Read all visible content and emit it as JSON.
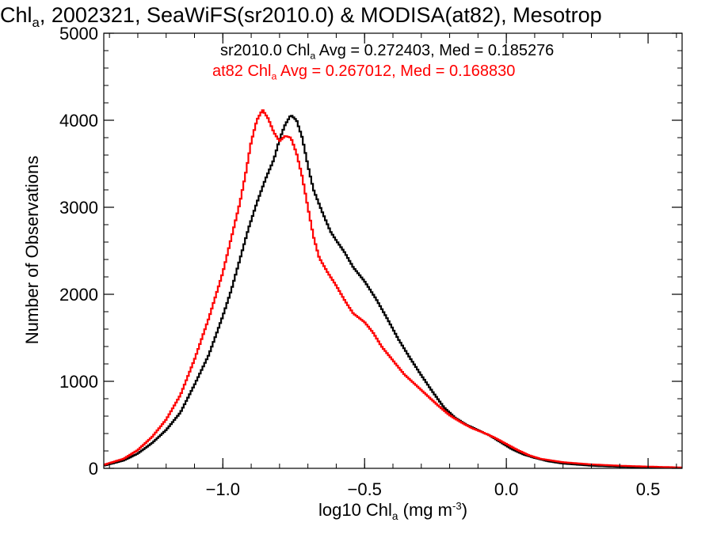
{
  "chart_data": {
    "type": "histogram",
    "title": {
      "pre": "Chl",
      "sub": "a",
      "post": ", 2002321, SeaWiFS(sr2010.0) & MODISA(at82), Mesotrop"
    },
    "xlabel": {
      "pre": "log10 Chl",
      "sub": "a",
      "mid": " (mg m",
      "sup": "-3",
      "post": ")"
    },
    "ylabel": "Number of Observations",
    "xlim": [
      -1.42,
      0.62
    ],
    "ylim": [
      0,
      5000
    ],
    "x_ticks": [
      -1.0,
      -0.5,
      0.0,
      0.5
    ],
    "x_tick_labels": [
      "−1.0",
      "−0.5",
      "0.0",
      "0.5"
    ],
    "y_ticks": [
      0,
      1000,
      2000,
      3000,
      4000,
      5000
    ],
    "y_tick_labels": [
      "0",
      "1000",
      "2000",
      "3000",
      "4000",
      "5000"
    ],
    "grid": false,
    "legend_position": "top-right",
    "series": [
      {
        "name": "sr2010.0",
        "color": "#000000",
        "stat_text": {
          "pre": "sr2010.0 Chl",
          "sub": "a",
          "post": " Avg = 0.272403, Med = 0.185276"
        },
        "points": [
          [
            -1.42,
            30
          ],
          [
            -1.35,
            90
          ],
          [
            -1.3,
            170
          ],
          [
            -1.25,
            290
          ],
          [
            -1.2,
            440
          ],
          [
            -1.15,
            640
          ],
          [
            -1.1,
            960
          ],
          [
            -1.05,
            1300
          ],
          [
            -1.0,
            1750
          ],
          [
            -0.97,
            2050
          ],
          [
            -0.94,
            2400
          ],
          [
            -0.91,
            2750
          ],
          [
            -0.88,
            3050
          ],
          [
            -0.85,
            3320
          ],
          [
            -0.82,
            3550
          ],
          [
            -0.8,
            3780
          ],
          [
            -0.78,
            3950
          ],
          [
            -0.76,
            4060
          ],
          [
            -0.74,
            4000
          ],
          [
            -0.72,
            3800
          ],
          [
            -0.7,
            3480
          ],
          [
            -0.68,
            3200
          ],
          [
            -0.65,
            2950
          ],
          [
            -0.62,
            2720
          ],
          [
            -0.6,
            2620
          ],
          [
            -0.57,
            2480
          ],
          [
            -0.54,
            2310
          ],
          [
            -0.5,
            2150
          ],
          [
            -0.46,
            1950
          ],
          [
            -0.42,
            1720
          ],
          [
            -0.38,
            1480
          ],
          [
            -0.34,
            1270
          ],
          [
            -0.3,
            1070
          ],
          [
            -0.26,
            880
          ],
          [
            -0.22,
            700
          ],
          [
            -0.18,
            580
          ],
          [
            -0.14,
            500
          ],
          [
            -0.1,
            440
          ],
          [
            -0.06,
            380
          ],
          [
            -0.02,
            300
          ],
          [
            0.02,
            220
          ],
          [
            0.06,
            160
          ],
          [
            0.1,
            120
          ],
          [
            0.15,
            80
          ],
          [
            0.2,
            55
          ],
          [
            0.3,
            30
          ],
          [
            0.4,
            18
          ],
          [
            0.5,
            10
          ],
          [
            0.62,
            5
          ]
        ]
      },
      {
        "name": "at82",
        "color": "#ff0000",
        "stat_text": {
          "pre": "at82 Chl",
          "sub": "a",
          "post": " Avg = 0.267012, Med = 0.168830"
        },
        "points": [
          [
            -1.42,
            40
          ],
          [
            -1.35,
            110
          ],
          [
            -1.3,
            210
          ],
          [
            -1.25,
            360
          ],
          [
            -1.2,
            560
          ],
          [
            -1.15,
            840
          ],
          [
            -1.1,
            1250
          ],
          [
            -1.05,
            1720
          ],
          [
            -1.0,
            2250
          ],
          [
            -0.97,
            2650
          ],
          [
            -0.94,
            3050
          ],
          [
            -0.92,
            3380
          ],
          [
            -0.9,
            3750
          ],
          [
            -0.88,
            4000
          ],
          [
            -0.86,
            4120
          ],
          [
            -0.84,
            4020
          ],
          [
            -0.82,
            3860
          ],
          [
            -0.8,
            3760
          ],
          [
            -0.78,
            3820
          ],
          [
            -0.76,
            3800
          ],
          [
            -0.74,
            3620
          ],
          [
            -0.72,
            3350
          ],
          [
            -0.7,
            3000
          ],
          [
            -0.68,
            2660
          ],
          [
            -0.66,
            2420
          ],
          [
            -0.63,
            2250
          ],
          [
            -0.6,
            2100
          ],
          [
            -0.57,
            1930
          ],
          [
            -0.54,
            1780
          ],
          [
            -0.5,
            1680
          ],
          [
            -0.47,
            1560
          ],
          [
            -0.44,
            1400
          ],
          [
            -0.4,
            1240
          ],
          [
            -0.36,
            1080
          ],
          [
            -0.32,
            960
          ],
          [
            -0.28,
            840
          ],
          [
            -0.24,
            720
          ],
          [
            -0.2,
            610
          ],
          [
            -0.16,
            530
          ],
          [
            -0.12,
            460
          ],
          [
            -0.08,
            410
          ],
          [
            -0.04,
            350
          ],
          [
            0.0,
            280
          ],
          [
            0.04,
            210
          ],
          [
            0.08,
            150
          ],
          [
            0.12,
            110
          ],
          [
            0.2,
            70
          ],
          [
            0.3,
            45
          ],
          [
            0.4,
            30
          ],
          [
            0.5,
            20
          ],
          [
            0.62,
            10
          ]
        ]
      }
    ]
  }
}
